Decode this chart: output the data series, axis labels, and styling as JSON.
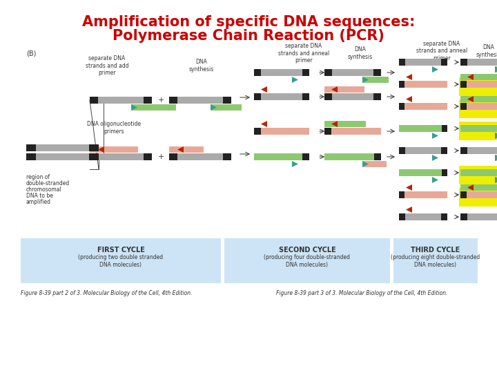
{
  "title_line1": "Amplification of specific DNA sequences:",
  "title_line2": "Polymerase Chain Reaction (PCR)",
  "title_color": "#cc0000",
  "title_fontsize": 15,
  "bg_color": "#ffffff",
  "panel_label": "(B)",
  "cycle_labels": [
    "FIRST CYCLE",
    "SECOND CYCLE",
    "THIRD CYCLE"
  ],
  "cycle_sub": [
    "(producing two double stranded\nDNA molecules)",
    "(producing four double-stranded\nDNA molecules)",
    "(producing eight double-stranded\nDNA molecules)"
  ],
  "cycle_box_color": "#cce4f5",
  "figure_caption1": "Figure 8-39 part 2 of 3. Molecular Biology of the Cell, 4th Edition.",
  "figure_caption2": "Figure 8-39 part 3 of 3. Molecular Biology of the Cell, 4th Edition.",
  "caption_fontsize": 5.5,
  "light_green": "#8dc870",
  "red_color": "#bb2200",
  "salmon_color": "#e8a898",
  "teal_color": "#3a9d8f",
  "yellow_color": "#eeee00",
  "gray_color": "#aaaaaa",
  "dark_color": "#222222"
}
